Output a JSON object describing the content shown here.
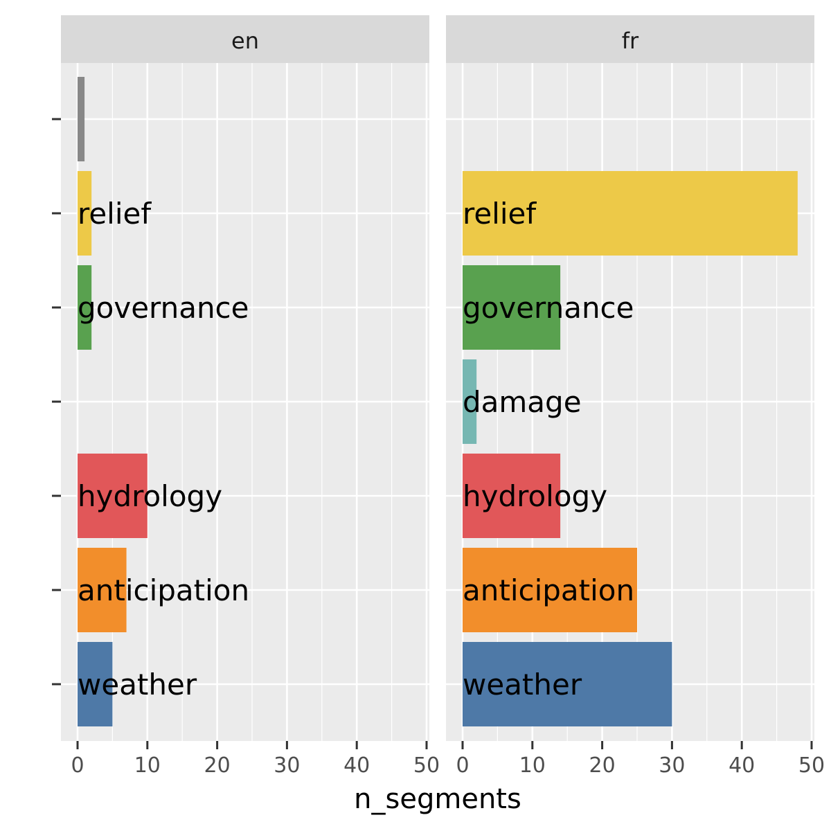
{
  "chart_data": {
    "type": "bar",
    "orientation": "horizontal",
    "xlabel": "n_segments",
    "ylabel": "",
    "xlim": [
      0,
      50
    ],
    "x_ticks": [
      0,
      10,
      20,
      30,
      40,
      50
    ],
    "grid": true,
    "rows": [
      "weather",
      "anticipation",
      "hydrology",
      "damage",
      "governance",
      "relief",
      ""
    ],
    "colors": {
      "weather": "#4e79a7",
      "anticipation": "#f28e2b",
      "hydrology": "#e15759",
      "damage": "#76b7b2",
      "governance": "#59a14f",
      "relief": "#edc948",
      "": "#888888"
    },
    "facets": [
      {
        "name": "en",
        "bars": [
          {
            "category": "weather",
            "value": 5
          },
          {
            "category": "anticipation",
            "value": 7
          },
          {
            "category": "hydrology",
            "value": 10
          },
          {
            "category": "governance",
            "value": 2
          },
          {
            "category": "relief",
            "value": 2
          },
          {
            "category": "",
            "value": 1
          }
        ]
      },
      {
        "name": "fr",
        "bars": [
          {
            "category": "weather",
            "value": 30
          },
          {
            "category": "anticipation",
            "value": 25
          },
          {
            "category": "hydrology",
            "value": 14
          },
          {
            "category": "damage",
            "value": 2
          },
          {
            "category": "governance",
            "value": 14
          },
          {
            "category": "relief",
            "value": 48
          }
        ]
      }
    ]
  }
}
